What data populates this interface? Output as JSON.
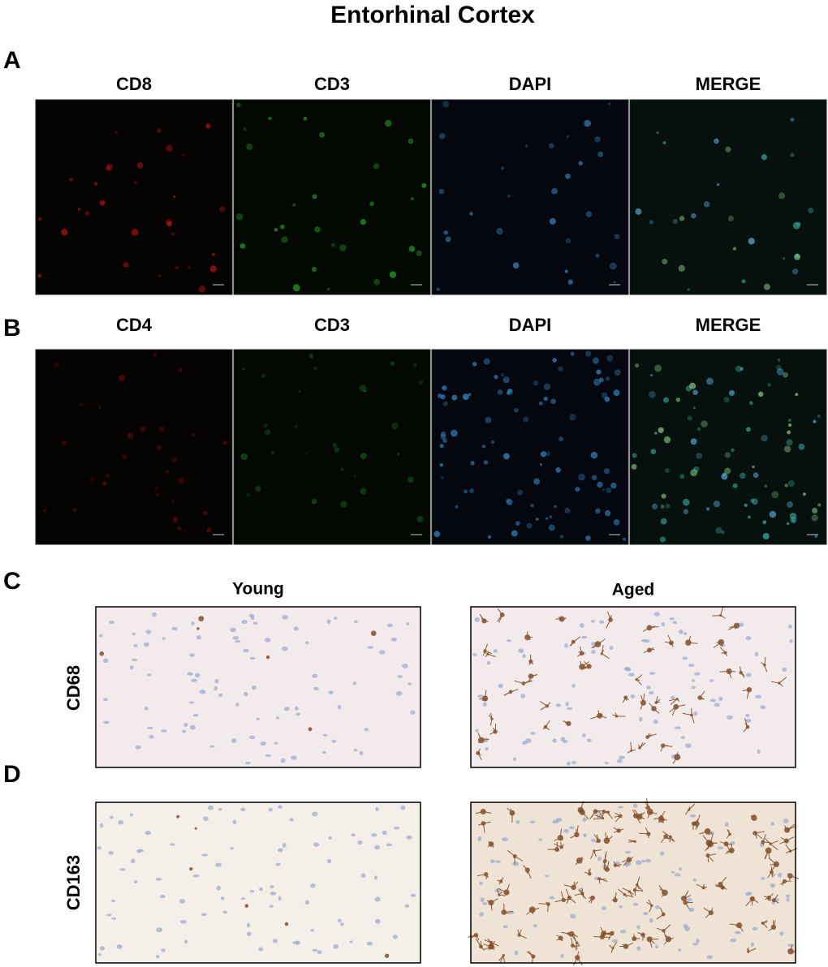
{
  "title": "Entorhinal Cortex",
  "panels": {
    "A": {
      "label": "A",
      "channels": [
        "CD8",
        "CD3",
        "DAPI",
        "MERGE"
      ]
    },
    "B": {
      "label": "B",
      "channels": [
        "CD4",
        "CD3",
        "DAPI",
        "MERGE"
      ]
    },
    "C": {
      "label": "C",
      "marker": "CD68"
    },
    "D": {
      "label": "D",
      "marker": "CD163"
    }
  },
  "columns": [
    "Young",
    "Aged"
  ]
}
